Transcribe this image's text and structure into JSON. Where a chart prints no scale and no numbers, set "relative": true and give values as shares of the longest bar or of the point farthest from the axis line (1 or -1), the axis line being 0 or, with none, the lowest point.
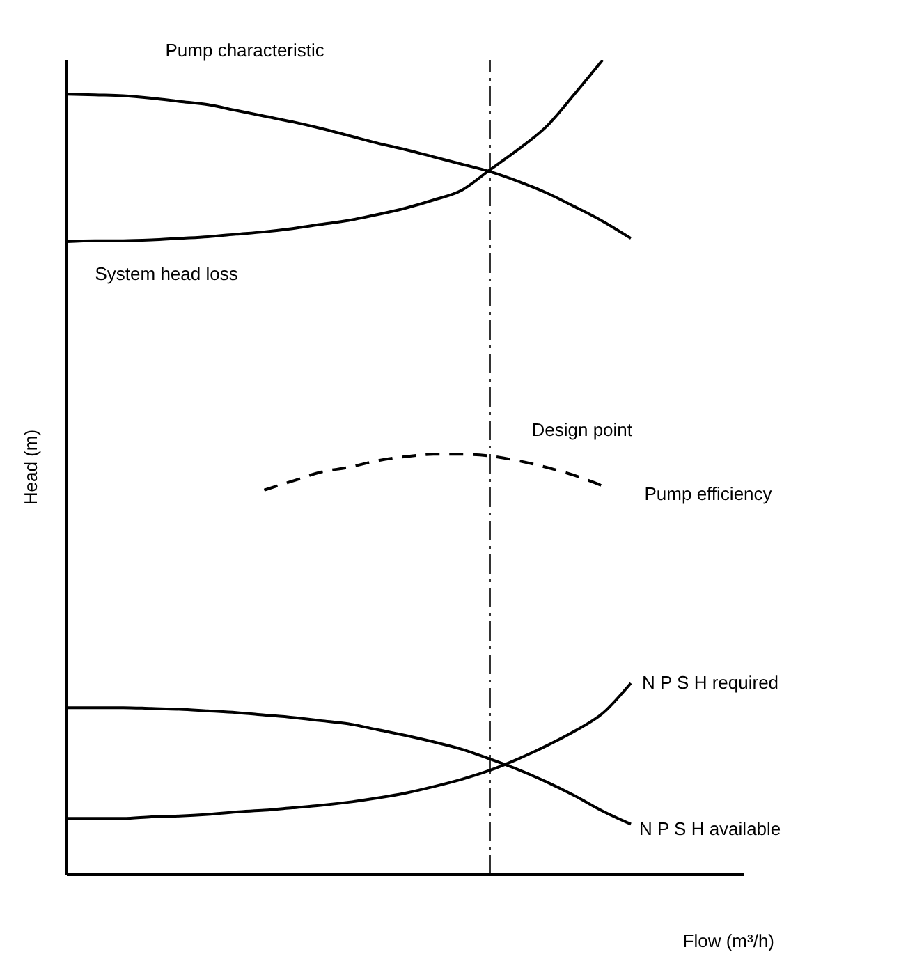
{
  "chart_data": {
    "type": "line",
    "relative": true,
    "xlabel": "Flow (m³/h)",
    "ylabel": "Head (m)",
    "marker": "none",
    "categories": [
      null,
      null,
      null,
      null,
      null,
      null,
      null,
      null,
      null,
      null,
      null,
      null,
      null,
      null,
      null,
      null,
      null,
      null,
      null,
      null,
      null,
      null,
      null,
      null,
      null
    ],
    "series": [
      {
        "name": "Pump characteristic",
        "color": "#000000",
        "line_style": "solid",
        "values": [
          0.958,
          0.957,
          0.956,
          0.953,
          0.949,
          0.945,
          0.938,
          0.931,
          0.924,
          0.916,
          0.907,
          0.898,
          0.89,
          0.881,
          0.872,
          0.863,
          0.851,
          0.837,
          0.82,
          0.802,
          0.781,
          null,
          null,
          null,
          null
        ]
      },
      {
        "name": "System head loss",
        "color": "#000000",
        "line_style": "solid",
        "values": [
          0.777,
          0.778,
          0.778,
          0.779,
          0.781,
          0.783,
          0.786,
          0.789,
          0.793,
          0.798,
          0.803,
          0.81,
          0.818,
          0.828,
          0.84,
          0.865,
          0.89,
          0.918,
          0.958,
          1.0,
          null,
          null,
          null,
          null,
          null
        ]
      },
      {
        "name": "Pump efficiency",
        "color": "#000000",
        "line_style": "dashed",
        "values": [
          null,
          null,
          null,
          null,
          null,
          null,
          null,
          0.472,
          0.483,
          0.494,
          0.5,
          0.508,
          0.513,
          0.516,
          0.516,
          0.514,
          0.508,
          0.5,
          0.49,
          0.477,
          null,
          null,
          null,
          null,
          null
        ]
      },
      {
        "name": "N P S H available",
        "color": "#000000",
        "line_style": "solid",
        "values": [
          0.205,
          0.205,
          0.205,
          0.204,
          0.203,
          0.201,
          0.199,
          0.196,
          0.193,
          0.189,
          0.185,
          0.178,
          0.171,
          0.163,
          0.154,
          0.142,
          0.129,
          0.114,
          0.097,
          0.078,
          0.062,
          null,
          null,
          null,
          null
        ]
      },
      {
        "name": "N P S H required",
        "color": "#000000",
        "line_style": "solid",
        "values": [
          0.069,
          0.069,
          0.069,
          0.071,
          0.072,
          0.074,
          0.077,
          0.079,
          0.082,
          0.085,
          0.089,
          0.094,
          0.1,
          0.108,
          0.117,
          0.128,
          0.142,
          0.158,
          0.176,
          0.198,
          0.235,
          null,
          null,
          null,
          null
        ]
      }
    ],
    "annotations": [
      "Design point"
    ]
  }
}
